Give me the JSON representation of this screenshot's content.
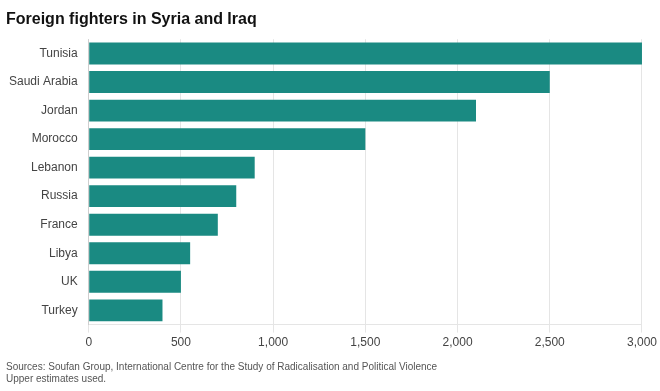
{
  "chart_data": {
    "type": "bar",
    "orientation": "horizontal",
    "title": "Foreign fighters in Syria and Iraq",
    "annotations": [
      "Sources: Soufan Group, International Centre for the Study of Radicalisation and Political Violence\nUpper estimates used."
    ],
    "categories": [
      "Turkey",
      "UK",
      "Libya",
      "France",
      "Russia",
      "Lebanon",
      "Morocco",
      "Jordan",
      "Saudi Arabia",
      "Tunisia"
    ],
    "values": [
      400,
      500,
      550,
      700,
      800,
      900,
      1500,
      2100,
      2500,
      3000
    ],
    "color": "#1a8a82",
    "xlim": [
      0,
      3000
    ],
    "xticks": [
      0,
      500,
      {
        "value": 1000,
        "label": "1,000"
      },
      {
        "value": 1500,
        "label": "1,500"
      },
      {
        "value": 2000,
        "label": "2,000"
      },
      {
        "value": 2500,
        "label": "2,500"
      },
      {
        "value": 3000,
        "label": "3,000"
      }
    ],
    "grid": true
  }
}
